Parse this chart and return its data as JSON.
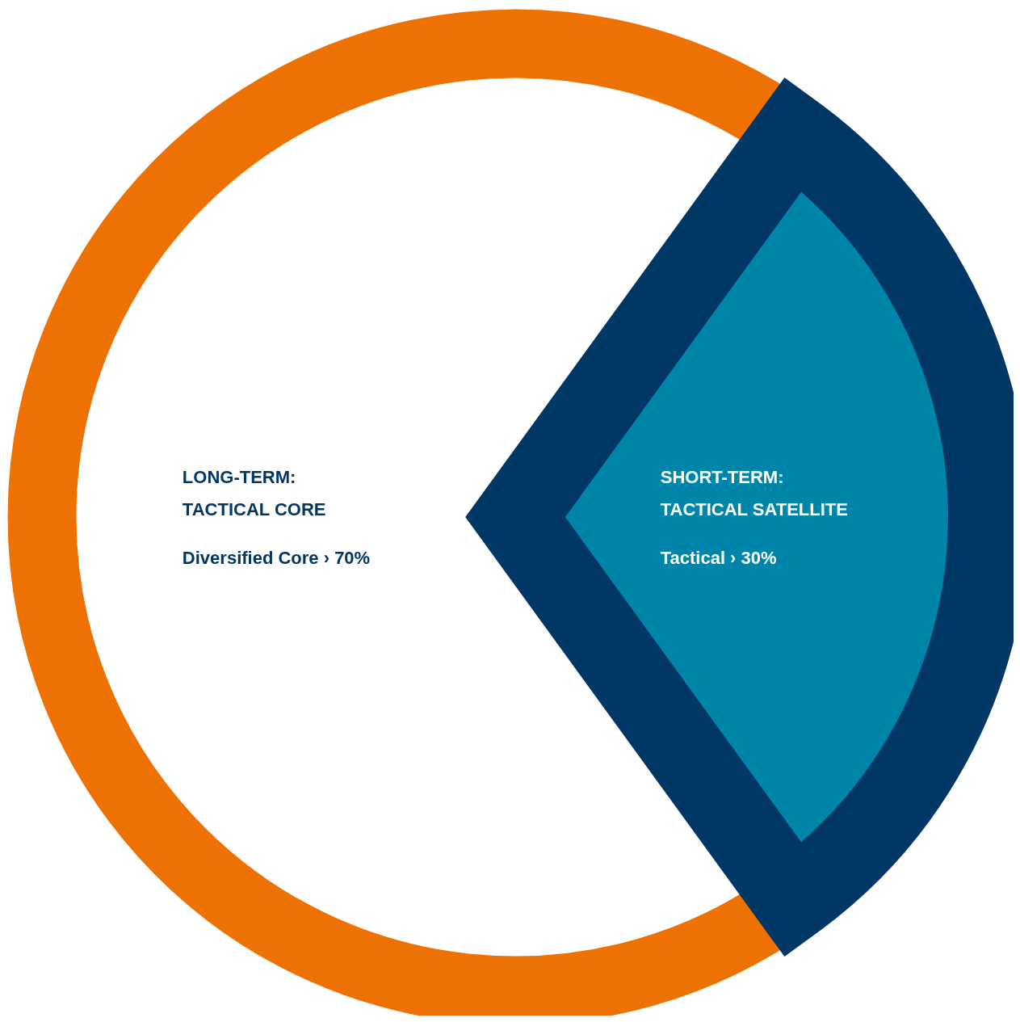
{
  "chart_data": {
    "type": "pie",
    "categories": [
      "LONG-TERM:\nTACTICAL CORE",
      "SHORT-TERM:\nTACTICAL SATELLITE"
    ],
    "values": [
      70,
      30
    ],
    "colors": [
      "#ffffff",
      "#0085aa"
    ],
    "value_labels": [
      "Diversified Core › 70%",
      "Tactical › 30%"
    ]
  }
}
